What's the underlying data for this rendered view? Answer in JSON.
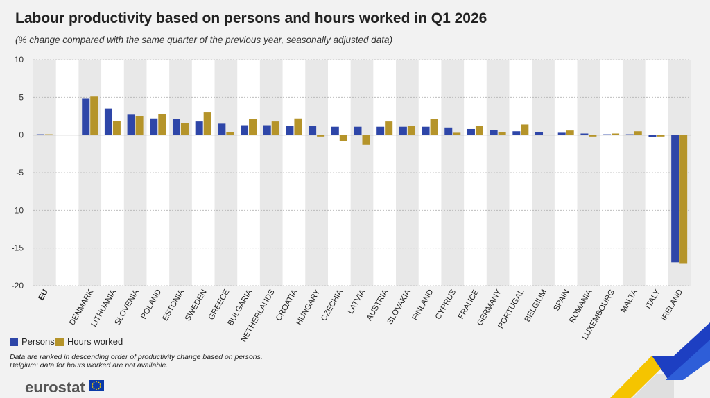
{
  "header": {
    "title": "Labour productivity based on persons and hours worked in Q1 2026",
    "subtitle": "(% change compared with the same quarter of the previous year, seasonally adjusted data)"
  },
  "legend": {
    "persons_label": "Persons",
    "hours_label": "Hours worked"
  },
  "notes": {
    "line1": "Data are ranked in descending order of productivity change based on persons.",
    "line2": "Belgium: data for hours worked are not available."
  },
  "footer": {
    "logo_text": "eurostat"
  },
  "colors": {
    "persons": "#2e46a8",
    "hours": "#b5942a",
    "band": "#e8e8e8",
    "plot_bg": "#ffffff",
    "grid": "#b3b3b3",
    "zero": "#888888"
  },
  "chart_data": {
    "type": "bar",
    "title": "Labour productivity based on persons and hours worked in Q1 2026",
    "subtitle": "(% change compared with the same quarter of the previous year, seasonally adjusted data)",
    "xlabel": "",
    "ylabel": "",
    "ylim": [
      -20,
      10
    ],
    "yticks": [
      10,
      5,
      0,
      -5,
      -10,
      -15,
      -20
    ],
    "grid": true,
    "legend_position": "bottom-left",
    "categories": [
      "EU",
      "DENMARK",
      "LITHUANIA",
      "SLOVENIA",
      "POLAND",
      "ESTONIA",
      "SWEDEN",
      "GREECE",
      "BULGARIA",
      "NETHERLANDS",
      "CROATIA",
      "HUNGARY",
      "CZECHIA",
      "LATVIA",
      "AUSTRIA",
      "SLOVAKIA",
      "FINLAND",
      "CYPRUS",
      "FRANCE",
      "GERMANY",
      "PORTUGAL",
      "BELGIUM",
      "SPAIN",
      "ROMANIA",
      "LUXEMBOURG",
      "MALTA",
      "ITALY",
      "IRELAND"
    ],
    "highlight_category": "EU",
    "series": [
      {
        "name": "Persons",
        "values": [
          0.1,
          4.8,
          3.5,
          2.7,
          2.2,
          2.1,
          1.8,
          1.5,
          1.3,
          1.3,
          1.2,
          1.2,
          1.1,
          1.1,
          1.1,
          1.1,
          1.1,
          1.0,
          0.8,
          0.7,
          0.5,
          0.4,
          0.3,
          0.2,
          0.1,
          0.1,
          -0.3,
          -16.9
        ]
      },
      {
        "name": "Hours worked",
        "values": [
          0.1,
          5.1,
          1.9,
          2.5,
          2.8,
          1.6,
          3.0,
          0.4,
          2.1,
          1.8,
          2.2,
          -0.2,
          -0.8,
          -1.3,
          1.8,
          1.2,
          2.1,
          0.3,
          1.2,
          0.4,
          1.4,
          null,
          0.6,
          -0.2,
          0.2,
          0.5,
          -0.2,
          -17.1
        ]
      }
    ]
  }
}
